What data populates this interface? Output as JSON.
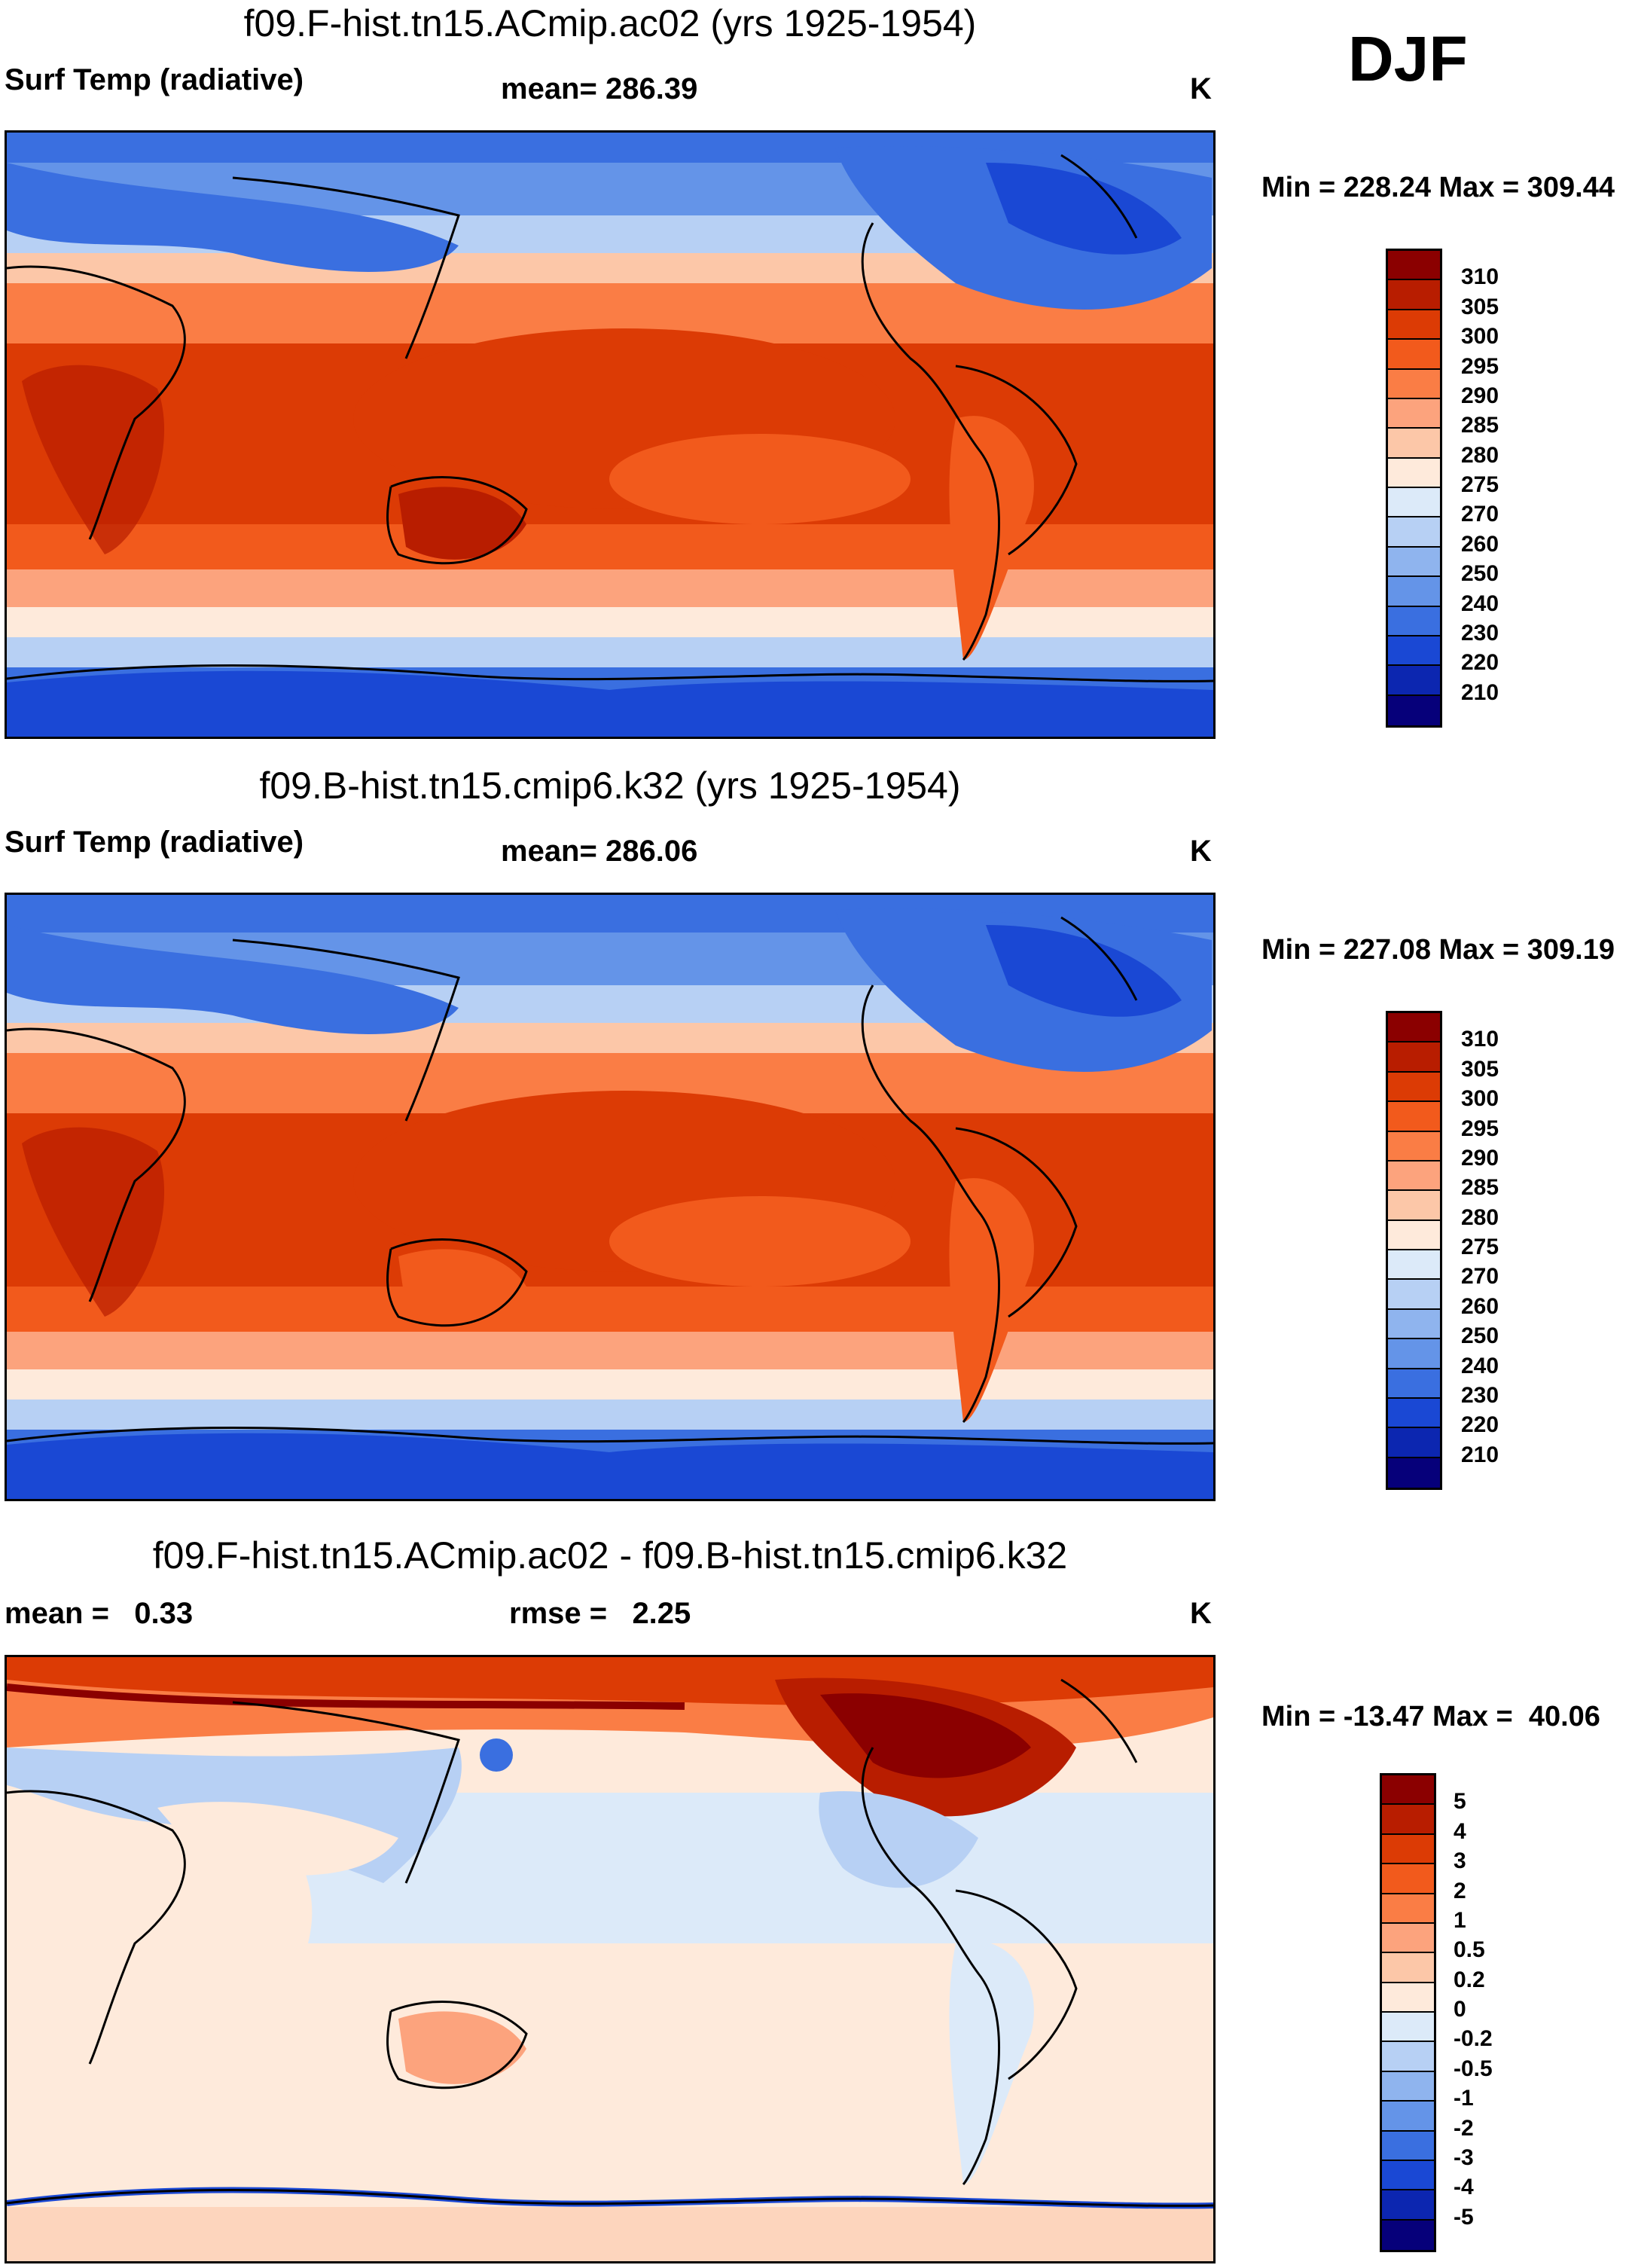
{
  "season": "DJF",
  "panels": [
    {
      "title": "f09.F-hist.tn15.ACmip.ac02 (yrs 1925-1954)",
      "left_label": "Surf Temp (radiative)",
      "center_label": "mean= 286.39",
      "units": "K",
      "minmax": "Min = 228.24 Max = 309.44",
      "colorbar": {
        "labels": [
          "310",
          "305",
          "300",
          "295",
          "290",
          "285",
          "280",
          "275",
          "270",
          "260",
          "250",
          "240",
          "230",
          "220",
          "210"
        ],
        "colors": [
          "#8b0000",
          "#b81d00",
          "#dc3b05",
          "#f25a1c",
          "#fa7d45",
          "#fca37d",
          "#fcc7a8",
          "#feeadb",
          "#dceaf9",
          "#b7d0f4",
          "#8fb4ee",
          "#6494e8",
          "#3a6fe0",
          "#1a48d4",
          "#0c26b0",
          "#06007a"
        ]
      }
    },
    {
      "title": "f09.B-hist.tn15.cmip6.k32 (yrs 1925-1954)",
      "left_label": "Surf Temp (radiative)",
      "center_label": "mean= 286.06",
      "units": "K",
      "minmax": "Min = 227.08 Max = 309.19",
      "colorbar": {
        "labels": [
          "310",
          "305",
          "300",
          "295",
          "290",
          "285",
          "280",
          "275",
          "270",
          "260",
          "250",
          "240",
          "230",
          "220",
          "210"
        ],
        "colors": [
          "#8b0000",
          "#b81d00",
          "#dc3b05",
          "#f25a1c",
          "#fa7d45",
          "#fca37d",
          "#fcc7a8",
          "#feeadb",
          "#dceaf9",
          "#b7d0f4",
          "#8fb4ee",
          "#6494e8",
          "#3a6fe0",
          "#1a48d4",
          "#0c26b0",
          "#06007a"
        ]
      }
    },
    {
      "title": "f09.F-hist.tn15.ACmip.ac02 - f09.B-hist.tn15.cmip6.k32",
      "left_label": "mean =   0.33",
      "center_label": "rmse =   2.25",
      "units": "K",
      "minmax": "Min = -13.47 Max =  40.06",
      "colorbar": {
        "labels": [
          "5",
          "4",
          "3",
          "2",
          "1",
          "0.5",
          "0.2",
          "0",
          "-0.2",
          "-0.5",
          "-1",
          "-2",
          "-3",
          "-4",
          "-5"
        ],
        "colors": [
          "#8b0000",
          "#b81d00",
          "#dc3b05",
          "#f25a1c",
          "#fa7d45",
          "#fca37d",
          "#fcc7a8",
          "#feeadb",
          "#dceaf9",
          "#b7d0f4",
          "#8fb4ee",
          "#6494e8",
          "#3a6fe0",
          "#1a48d4",
          "#0c26b0",
          "#06007a"
        ]
      }
    }
  ]
}
